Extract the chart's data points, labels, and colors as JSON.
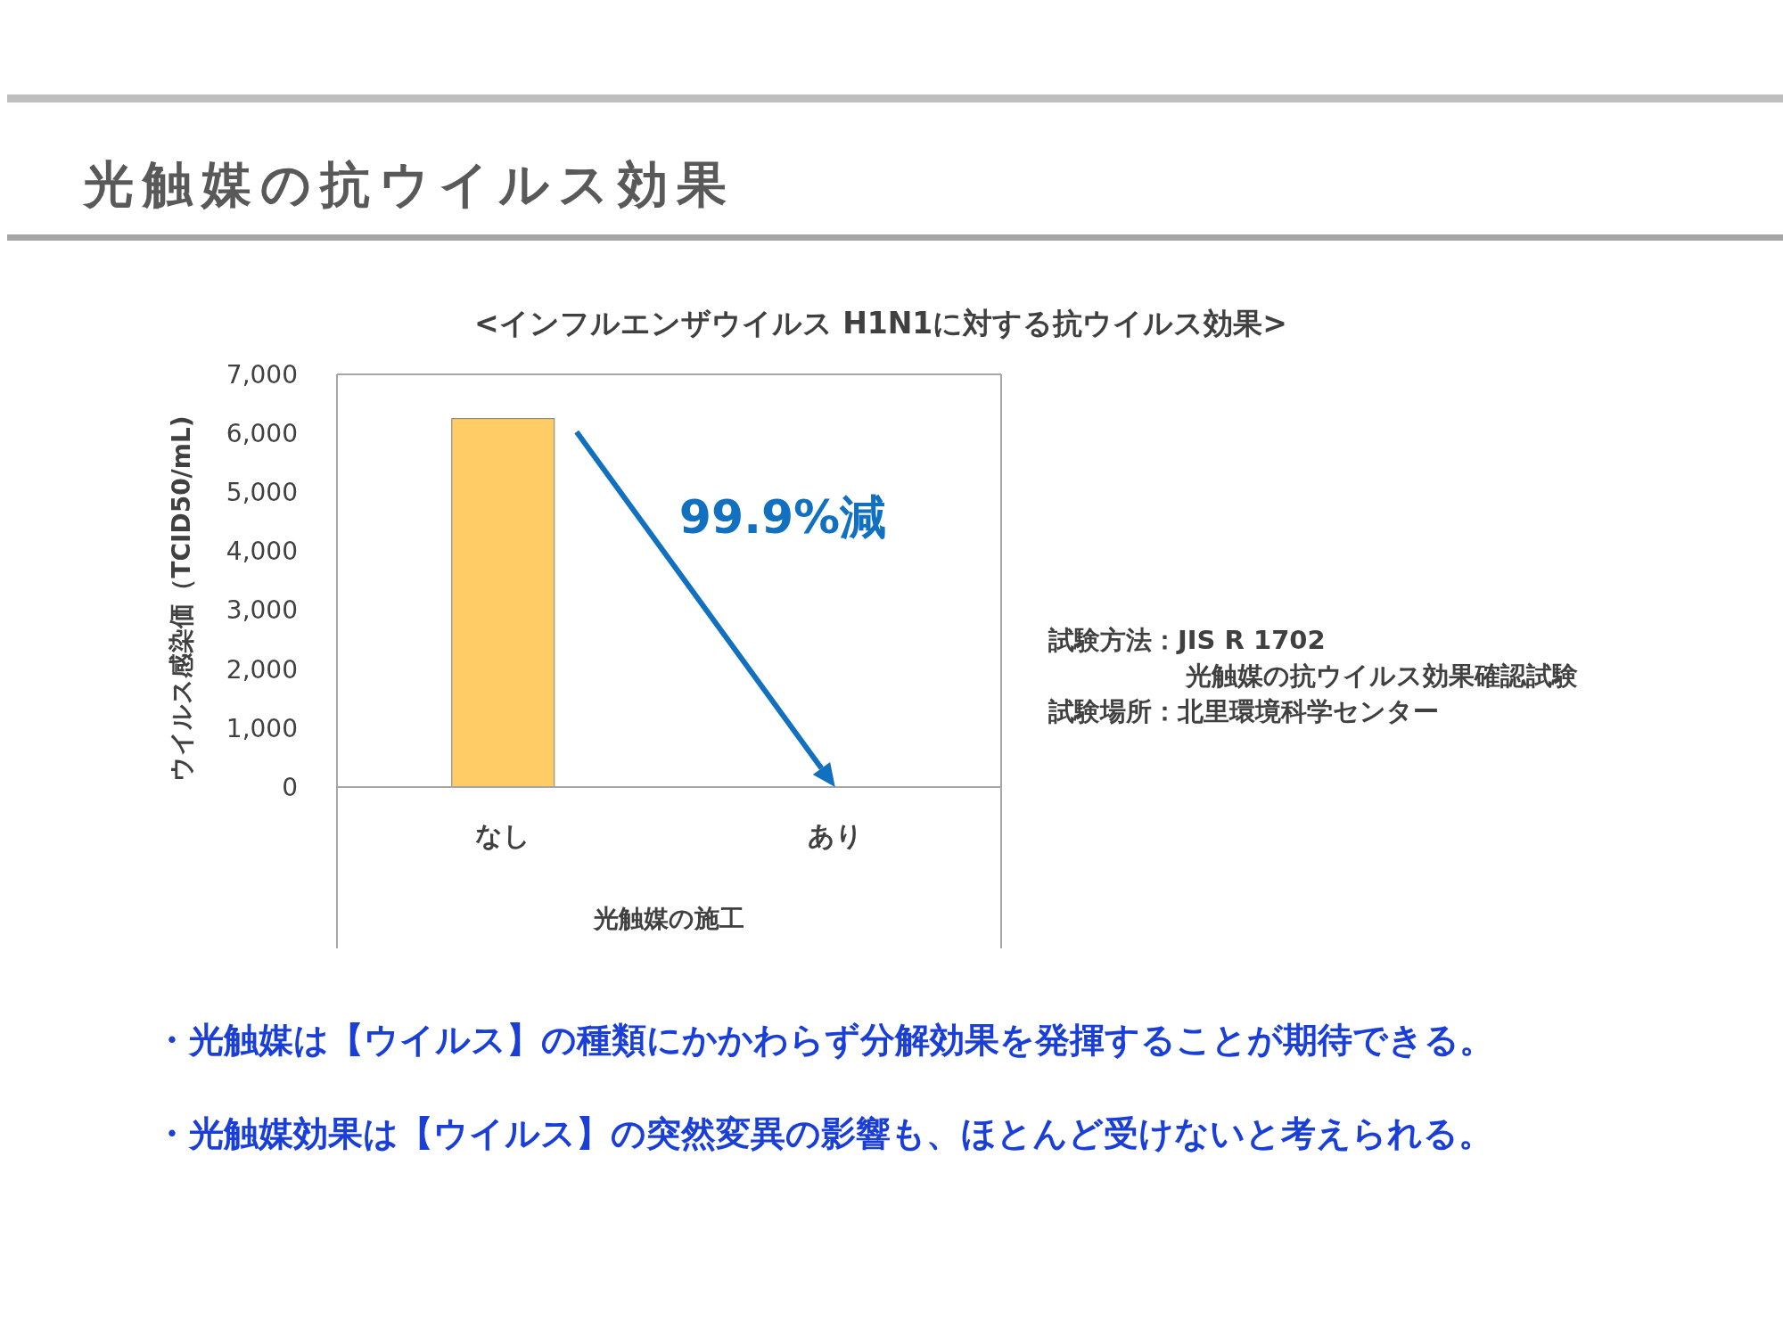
{
  "chart_data": {
    "type": "bar",
    "title": "光触媒の抗ウイルス効果",
    "subtitle": "<インフルエンザウイルス H1N1に対する抗ウイルス効果>",
    "xlabel": "光触媒の施工",
    "ylabel": "ウイルス感染価（TCID50/mL)",
    "categories": [
      "なし",
      "あり"
    ],
    "values": [
      6250,
      0
    ],
    "color": "#ffcc66",
    "ylim": [
      0,
      7000
    ],
    "yticks": [
      {
        "value": 0,
        "label": "0"
      },
      {
        "value": 1000,
        "label": "1,000"
      },
      {
        "value": 2000,
        "label": "2,000"
      },
      {
        "value": 3000,
        "label": "3,000"
      },
      {
        "value": 4000,
        "label": "4,000"
      },
      {
        "value": 5000,
        "label": "5,000"
      },
      {
        "value": 6000,
        "label": "6,000"
      },
      {
        "value": 7000,
        "label": "7,000"
      }
    ],
    "grid": false,
    "annotations": [
      "99.9%減",
      "試験方法：JIS R 1702",
      "光触媒の抗ウイルス効果確認試験",
      "試験場所：北里環境科学センター",
      "・光触媒は【ウイルス】の種類にかかわらず分解効果を発揮することが期待できる。",
      "・光触媒効果は【ウイルス】の突然変異の影響も、ほとんど受けないと考えられる。"
    ]
  }
}
